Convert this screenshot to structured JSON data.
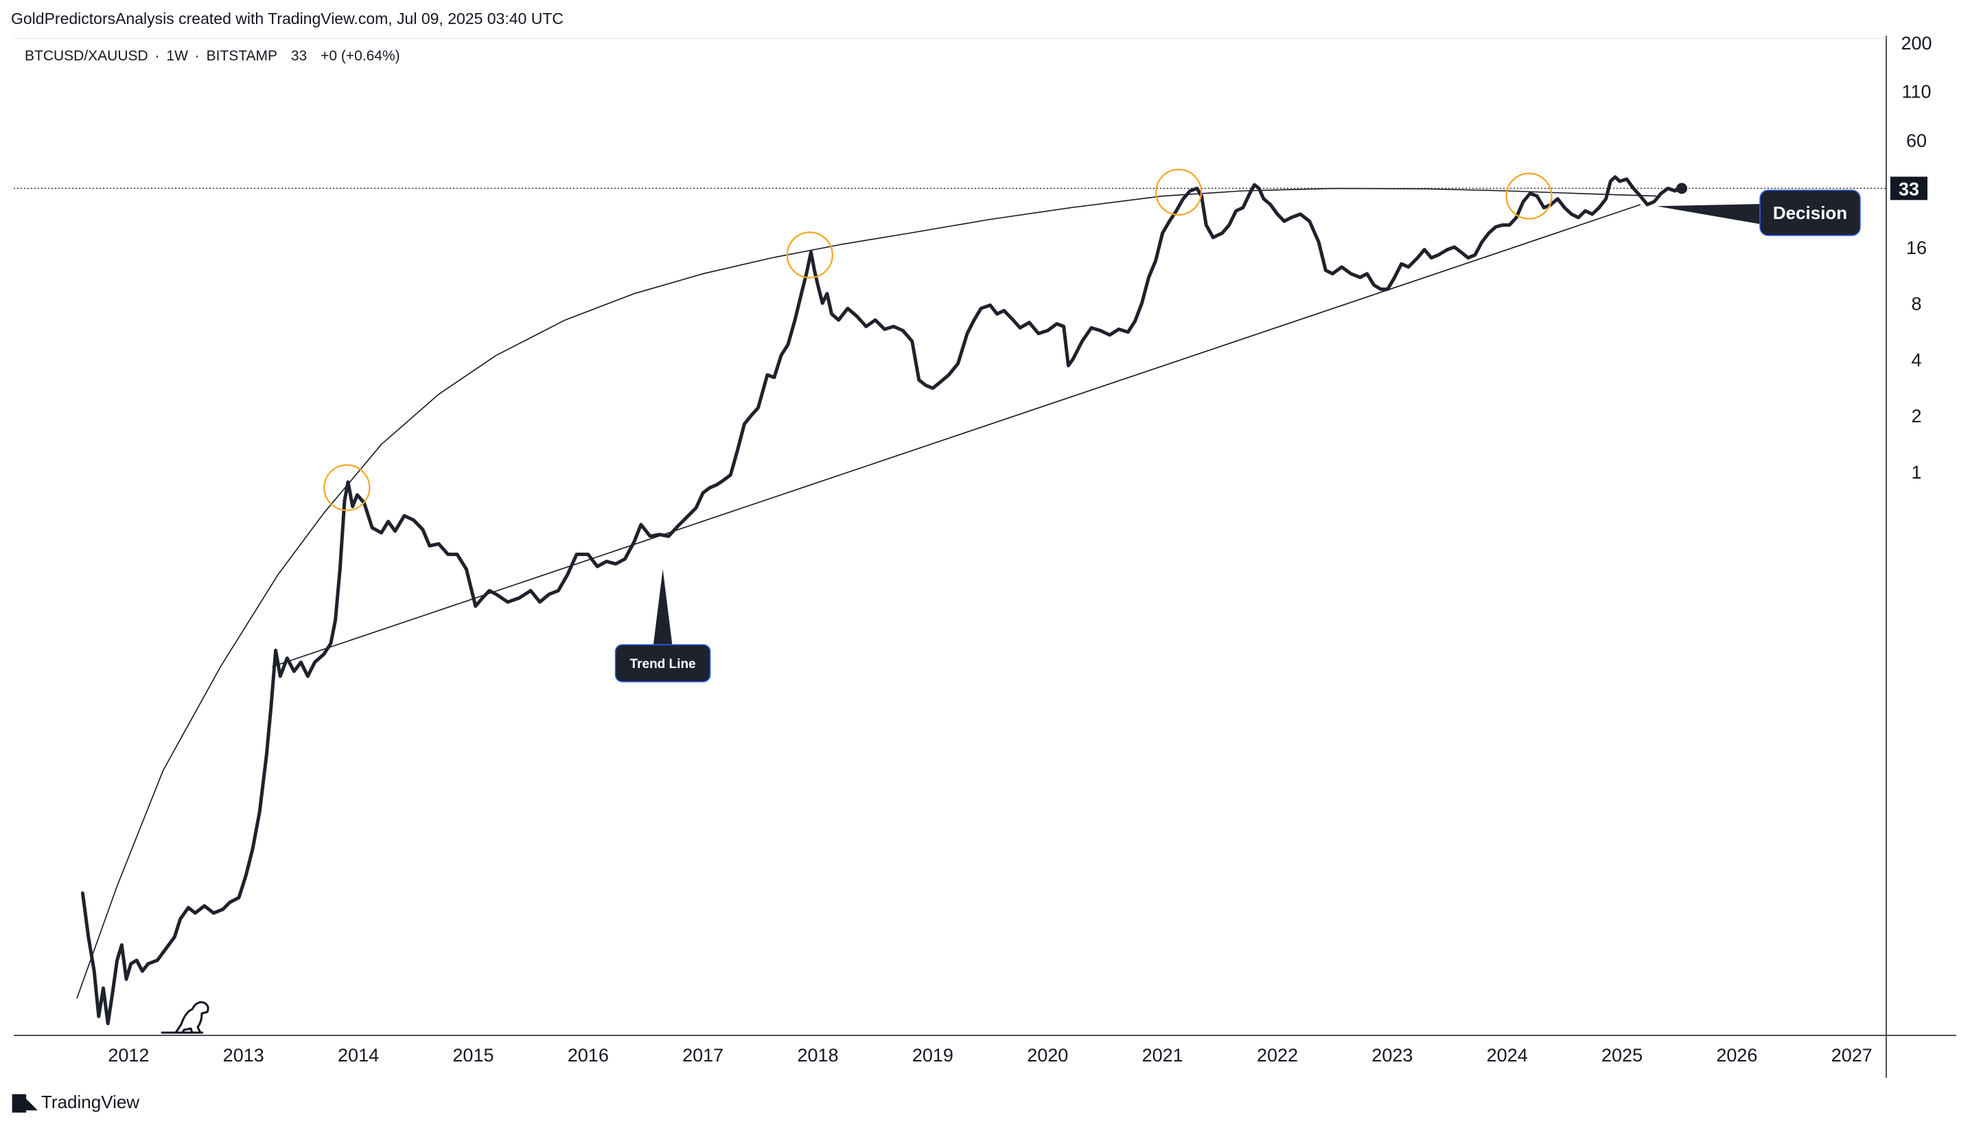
{
  "header": {
    "author_line": "GoldPredictorsAnalysis created with TradingView.com, Jul 09, 2025 03:40 UTC"
  },
  "symbol_info": {
    "symbol": "BTCUSD/XAUUSD",
    "sep1": "·",
    "interval": "1W",
    "sep2": "·",
    "exchange": "BITSTAMP",
    "last": "33",
    "change": "+0 (+0.64%)"
  },
  "footer": {
    "brand": "TradingView"
  },
  "chart_data": {
    "type": "line",
    "y_scale": "log",
    "y_ticks": [
      1,
      2,
      4,
      8,
      16,
      33,
      60,
      110,
      200
    ],
    "x_ticks": [
      "2012",
      "2013",
      "2014",
      "2015",
      "2016",
      "2017",
      "2018",
      "2019",
      "2020",
      "2021",
      "2022",
      "2023",
      "2024",
      "2025",
      "2026",
      "2027"
    ],
    "last_price_label": "33",
    "series": [
      {
        "points": [
          [
            2011.6,
            0.0055
          ],
          [
            2011.65,
            0.0032
          ],
          [
            2011.7,
            0.0021
          ],
          [
            2011.74,
            0.0012
          ],
          [
            2011.78,
            0.0017
          ],
          [
            2011.82,
            0.0011
          ],
          [
            2011.86,
            0.0016
          ],
          [
            2011.9,
            0.0024
          ],
          [
            2011.94,
            0.0029
          ],
          [
            2011.98,
            0.0019
          ],
          [
            2012.02,
            0.0023
          ],
          [
            2012.07,
            0.0024
          ],
          [
            2012.12,
            0.0021
          ],
          [
            2012.17,
            0.0023
          ],
          [
            2012.25,
            0.0024
          ],
          [
            2012.33,
            0.0028
          ],
          [
            2012.4,
            0.0032
          ],
          [
            2012.45,
            0.004
          ],
          [
            2012.52,
            0.0046
          ],
          [
            2012.58,
            0.0043
          ],
          [
            2012.66,
            0.0047
          ],
          [
            2012.74,
            0.0043
          ],
          [
            2012.82,
            0.0045
          ],
          [
            2012.88,
            0.0049
          ],
          [
            2012.96,
            0.0052
          ],
          [
            2013.02,
            0.0068
          ],
          [
            2013.08,
            0.0095
          ],
          [
            2013.14,
            0.015
          ],
          [
            2013.2,
            0.03
          ],
          [
            2013.24,
            0.055
          ],
          [
            2013.28,
            0.11
          ],
          [
            2013.32,
            0.08
          ],
          [
            2013.38,
            0.1
          ],
          [
            2013.44,
            0.085
          ],
          [
            2013.5,
            0.095
          ],
          [
            2013.56,
            0.08
          ],
          [
            2013.62,
            0.095
          ],
          [
            2013.7,
            0.105
          ],
          [
            2013.76,
            0.12
          ],
          [
            2013.8,
            0.16
          ],
          [
            2013.84,
            0.3
          ],
          [
            2013.88,
            0.7
          ],
          [
            2013.91,
            0.88
          ],
          [
            2013.95,
            0.65
          ],
          [
            2013.99,
            0.75
          ],
          [
            2014.05,
            0.68
          ],
          [
            2014.12,
            0.5
          ],
          [
            2014.2,
            0.47
          ],
          [
            2014.26,
            0.54
          ],
          [
            2014.32,
            0.48
          ],
          [
            2014.4,
            0.58
          ],
          [
            2014.48,
            0.55
          ],
          [
            2014.56,
            0.49
          ],
          [
            2014.62,
            0.4
          ],
          [
            2014.7,
            0.41
          ],
          [
            2014.78,
            0.36
          ],
          [
            2014.86,
            0.36
          ],
          [
            2014.94,
            0.3
          ],
          [
            2015.02,
            0.19
          ],
          [
            2015.08,
            0.21
          ],
          [
            2015.14,
            0.23
          ],
          [
            2015.2,
            0.22
          ],
          [
            2015.3,
            0.2
          ],
          [
            2015.4,
            0.21
          ],
          [
            2015.5,
            0.23
          ],
          [
            2015.58,
            0.2
          ],
          [
            2015.66,
            0.22
          ],
          [
            2015.74,
            0.23
          ],
          [
            2015.82,
            0.28
          ],
          [
            2015.9,
            0.36
          ],
          [
            2016.0,
            0.36
          ],
          [
            2016.08,
            0.31
          ],
          [
            2016.16,
            0.33
          ],
          [
            2016.24,
            0.32
          ],
          [
            2016.32,
            0.34
          ],
          [
            2016.4,
            0.42
          ],
          [
            2016.46,
            0.52
          ],
          [
            2016.54,
            0.45
          ],
          [
            2016.62,
            0.46
          ],
          [
            2016.7,
            0.45
          ],
          [
            2016.78,
            0.51
          ],
          [
            2016.86,
            0.57
          ],
          [
            2016.94,
            0.64
          ],
          [
            2017.0,
            0.77
          ],
          [
            2017.06,
            0.82
          ],
          [
            2017.12,
            0.85
          ],
          [
            2017.18,
            0.9
          ],
          [
            2017.24,
            0.96
          ],
          [
            2017.3,
            1.3
          ],
          [
            2017.36,
            1.8
          ],
          [
            2017.42,
            2.0
          ],
          [
            2017.48,
            2.2
          ],
          [
            2017.56,
            3.3
          ],
          [
            2017.62,
            3.2
          ],
          [
            2017.68,
            4.2
          ],
          [
            2017.74,
            4.8
          ],
          [
            2017.8,
            6.5
          ],
          [
            2017.86,
            9.2
          ],
          [
            2017.9,
            11.5
          ],
          [
            2017.94,
            15.0
          ],
          [
            2017.97,
            12.0
          ],
          [
            2018.0,
            10.0
          ],
          [
            2018.04,
            8.0
          ],
          [
            2018.08,
            9.0
          ],
          [
            2018.12,
            7.0
          ],
          [
            2018.18,
            6.5
          ],
          [
            2018.26,
            7.5
          ],
          [
            2018.34,
            6.8
          ],
          [
            2018.42,
            6.0
          ],
          [
            2018.5,
            6.5
          ],
          [
            2018.58,
            5.8
          ],
          [
            2018.66,
            6.0
          ],
          [
            2018.74,
            5.7
          ],
          [
            2018.82,
            5.0
          ],
          [
            2018.88,
            3.1
          ],
          [
            2018.94,
            2.9
          ],
          [
            2019.0,
            2.8
          ],
          [
            2019.06,
            3.0
          ],
          [
            2019.14,
            3.3
          ],
          [
            2019.22,
            3.8
          ],
          [
            2019.3,
            5.5
          ],
          [
            2019.36,
            6.5
          ],
          [
            2019.42,
            7.5
          ],
          [
            2019.5,
            7.8
          ],
          [
            2019.56,
            7.0
          ],
          [
            2019.62,
            7.3
          ],
          [
            2019.7,
            6.5
          ],
          [
            2019.76,
            5.9
          ],
          [
            2019.84,
            6.3
          ],
          [
            2019.92,
            5.5
          ],
          [
            2020.0,
            5.7
          ],
          [
            2020.08,
            6.2
          ],
          [
            2020.14,
            6.0
          ],
          [
            2020.18,
            3.7
          ],
          [
            2020.22,
            4.0
          ],
          [
            2020.3,
            5.0
          ],
          [
            2020.38,
            5.9
          ],
          [
            2020.46,
            5.7
          ],
          [
            2020.54,
            5.4
          ],
          [
            2020.62,
            5.8
          ],
          [
            2020.7,
            5.6
          ],
          [
            2020.76,
            6.4
          ],
          [
            2020.82,
            8.0
          ],
          [
            2020.88,
            11.0
          ],
          [
            2020.94,
            13.5
          ],
          [
            2021.0,
            19.0
          ],
          [
            2021.06,
            22.0
          ],
          [
            2021.12,
            25.0
          ],
          [
            2021.18,
            29.0
          ],
          [
            2021.24,
            32.0
          ],
          [
            2021.3,
            33.0
          ],
          [
            2021.34,
            30.0
          ],
          [
            2021.38,
            21.0
          ],
          [
            2021.44,
            18.0
          ],
          [
            2021.52,
            19.0
          ],
          [
            2021.58,
            21.0
          ],
          [
            2021.64,
            25.0
          ],
          [
            2021.7,
            26.0
          ],
          [
            2021.76,
            31.0
          ],
          [
            2021.8,
            34.5
          ],
          [
            2021.84,
            33.0
          ],
          [
            2021.88,
            29.0
          ],
          [
            2021.94,
            27.0
          ],
          [
            2022.0,
            24.0
          ],
          [
            2022.06,
            22.0
          ],
          [
            2022.12,
            23.0
          ],
          [
            2022.2,
            24.0
          ],
          [
            2022.28,
            22.0
          ],
          [
            2022.36,
            17.0
          ],
          [
            2022.42,
            12.0
          ],
          [
            2022.48,
            11.5
          ],
          [
            2022.56,
            12.5
          ],
          [
            2022.64,
            11.5
          ],
          [
            2022.72,
            11.0
          ],
          [
            2022.78,
            11.5
          ],
          [
            2022.84,
            10.0
          ],
          [
            2022.9,
            9.5
          ],
          [
            2022.96,
            9.5
          ],
          [
            2023.02,
            11.0
          ],
          [
            2023.08,
            13.0
          ],
          [
            2023.14,
            12.5
          ],
          [
            2023.22,
            14.0
          ],
          [
            2023.28,
            15.5
          ],
          [
            2023.34,
            14.0
          ],
          [
            2023.4,
            14.5
          ],
          [
            2023.48,
            15.5
          ],
          [
            2023.54,
            16.0
          ],
          [
            2023.6,
            15.0
          ],
          [
            2023.66,
            14.0
          ],
          [
            2023.72,
            14.5
          ],
          [
            2023.78,
            17.0
          ],
          [
            2023.84,
            19.0
          ],
          [
            2023.9,
            20.5
          ],
          [
            2023.96,
            21.0
          ],
          [
            2024.02,
            21.0
          ],
          [
            2024.08,
            23.0
          ],
          [
            2024.14,
            28.0
          ],
          [
            2024.2,
            31.0
          ],
          [
            2024.26,
            30.0
          ],
          [
            2024.32,
            26.0
          ],
          [
            2024.38,
            27.0
          ],
          [
            2024.44,
            29.0
          ],
          [
            2024.5,
            26.0
          ],
          [
            2024.56,
            24.0
          ],
          [
            2024.62,
            23.0
          ],
          [
            2024.68,
            25.0
          ],
          [
            2024.74,
            24.0
          ],
          [
            2024.8,
            26.0
          ],
          [
            2024.86,
            29.0
          ],
          [
            2024.9,
            36.0
          ],
          [
            2024.94,
            38.0
          ],
          [
            2024.98,
            36.0
          ],
          [
            2025.04,
            37.0
          ],
          [
            2025.1,
            33.0
          ],
          [
            2025.16,
            30.0
          ],
          [
            2025.22,
            27.0
          ],
          [
            2025.28,
            28.0
          ],
          [
            2025.34,
            31.0
          ],
          [
            2025.4,
            33.0
          ],
          [
            2025.46,
            32.0
          ],
          [
            2025.52,
            33.0
          ]
        ]
      }
    ],
    "trend_line": {
      "from": [
        2013.25,
        0.09
      ],
      "to": [
        2025.16,
        27
      ]
    },
    "arc_curve": {
      "points": [
        [
          2011.55,
          0.0015
        ],
        [
          2011.9,
          0.006
        ],
        [
          2012.3,
          0.025
        ],
        [
          2012.8,
          0.09
        ],
        [
          2013.3,
          0.28
        ],
        [
          2013.7,
          0.6
        ],
        [
          2014.2,
          1.4
        ],
        [
          2014.7,
          2.6
        ],
        [
          2015.2,
          4.2
        ],
        [
          2015.8,
          6.5
        ],
        [
          2016.4,
          9.0
        ],
        [
          2017.0,
          11.5
        ],
        [
          2017.6,
          14.0
        ],
        [
          2018.2,
          16.5
        ],
        [
          2018.8,
          19.0
        ],
        [
          2019.5,
          22.5
        ],
        [
          2020.2,
          26.0
        ],
        [
          2021.0,
          30.0
        ],
        [
          2021.7,
          32.0
        ],
        [
          2022.5,
          33.0
        ],
        [
          2023.3,
          32.8
        ],
        [
          2024.0,
          32.0
        ],
        [
          2024.6,
          31.0
        ],
        [
          2025.3,
          30.0
        ]
      ]
    },
    "highlight_circles": [
      [
        2013.9,
        0.82
      ],
      [
        2017.93,
        14.5
      ],
      [
        2021.14,
        31.5
      ],
      [
        2024.19,
        30.0
      ]
    ],
    "last_price_point": [
      2025.52,
      33
    ],
    "annotations": [
      {
        "text": "Trend Line",
        "tip": [
          2016.65,
          0.3
        ]
      },
      {
        "text": "Decision",
        "tip": [
          2025.3,
          26.5
        ]
      }
    ],
    "x_range": [
      2011.0,
      2027.3
    ],
    "y_range": [
      0.00095,
      210
    ],
    "colors": {
      "series": "#1f222b",
      "trend": "#131722",
      "circle": "#f5a623",
      "badge": "#1e222d",
      "badge_border": "#2962ff"
    }
  }
}
